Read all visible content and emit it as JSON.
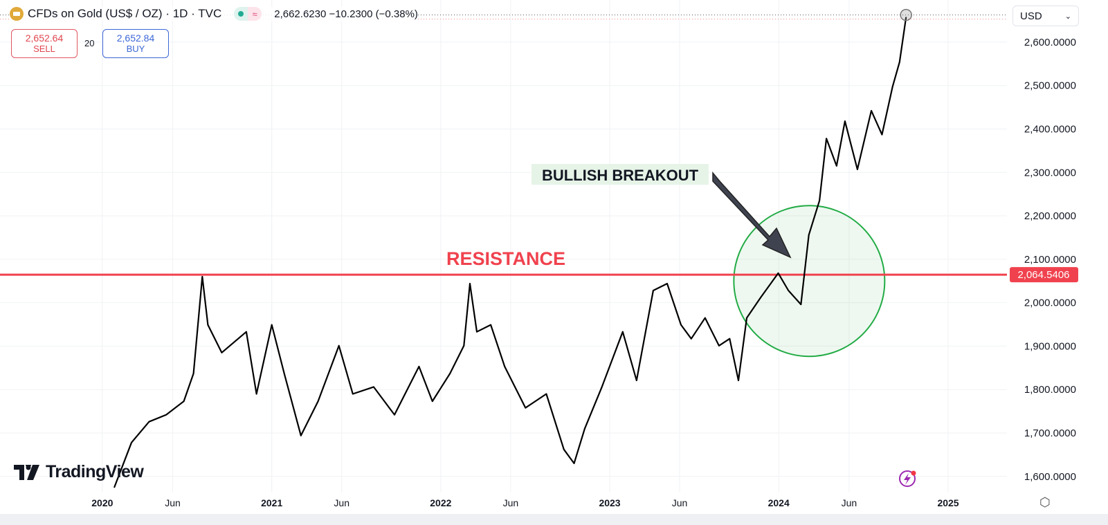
{
  "header": {
    "symbol": "CFDs on Gold (US$ / OZ) · 1D · TVC",
    "quote": "2,662.6230 −10.2300 (−0.38%)",
    "icon": "gold-bars-icon",
    "status_icons": [
      "market-open-dot-icon",
      "wave-icon"
    ]
  },
  "trade": {
    "sell_price": "2,652.64",
    "sell_label": "SELL",
    "spread": "20",
    "buy_price": "2,652.84",
    "buy_label": "BUY"
  },
  "currency": {
    "selected": "USD"
  },
  "brand": {
    "logo_text": "TradingView"
  },
  "colors": {
    "price_line": "#000000",
    "resistance": "#f0424e",
    "circle": "#22ab45",
    "sell": "#e0454f",
    "buy": "#3c67d6"
  },
  "chart_data": {
    "type": "line",
    "title": "",
    "ylabel": "",
    "xlabel": "",
    "xlim": [
      "2019-05-25",
      "2025-05-08"
    ],
    "ylim": [
      1563,
      2697
    ],
    "grid": true,
    "y_ticks": [
      "2,600.0000",
      "2,500.0000",
      "2,400.0000",
      "2,300.0000",
      "2,200.0000",
      "2,100.0000",
      "2,000.0000",
      "1,900.0000",
      "1,800.0000",
      "1,700.0000",
      "1,600.0000"
    ],
    "y_tick_values": [
      2600,
      2500,
      2400,
      2300,
      2200,
      2100,
      2000,
      1900,
      1800,
      1700,
      1600
    ],
    "x_ticks": [
      {
        "label": "2020",
        "date": "2020-01-01",
        "bold": true
      },
      {
        "label": "Jun",
        "date": "2020-06-01"
      },
      {
        "label": "2021",
        "date": "2021-01-01",
        "bold": true
      },
      {
        "label": "Jun",
        "date": "2021-06-01"
      },
      {
        "label": "2022",
        "date": "2022-01-01",
        "bold": true
      },
      {
        "label": "Jun",
        "date": "2022-06-01"
      },
      {
        "label": "2023",
        "date": "2023-01-01",
        "bold": true
      },
      {
        "label": "Jun",
        "date": "2023-06-01"
      },
      {
        "label": "2024",
        "date": "2024-01-01",
        "bold": true
      },
      {
        "label": "Jun",
        "date": "2024-06-01"
      },
      {
        "label": "2025",
        "date": "2025-01-01",
        "bold": true
      }
    ],
    "series": [
      {
        "x": [
          "2020-01-27",
          "2020-03-04",
          "2020-04-11",
          "2020-05-18",
          "2020-06-25",
          "2020-07-16",
          "2020-08-04",
          "2020-08-16",
          "2020-09-15",
          "2020-11-07",
          "2020-11-29",
          "2021-01-01",
          "2021-01-28",
          "2021-03-05",
          "2021-04-11",
          "2021-05-26",
          "2021-06-25",
          "2021-08-09",
          "2021-09-23",
          "2021-11-15",
          "2021-12-14",
          "2022-01-21",
          "2022-02-20",
          "2022-03-05",
          "2022-03-20",
          "2022-04-19",
          "2022-05-19",
          "2022-07-03",
          "2022-08-17",
          "2022-09-24",
          "2022-10-16",
          "2022-11-08",
          "2022-12-15",
          "2023-01-29",
          "2023-02-28",
          "2023-04-05",
          "2023-05-05",
          "2023-06-04",
          "2023-06-26",
          "2023-07-26",
          "2023-08-25",
          "2023-09-17",
          "2023-10-06",
          "2023-10-24",
          "2023-11-23",
          "2023-12-31",
          "2024-01-22",
          "2024-02-18",
          "2024-03-06",
          "2024-03-29",
          "2024-04-13",
          "2024-05-05",
          "2024-05-23",
          "2024-06-19",
          "2024-07-19",
          "2024-08-11",
          "2024-09-03",
          "2024-09-18",
          "2024-10-02"
        ],
        "values": [
          1575,
          1678,
          1726,
          1742,
          1773,
          1837,
          2060,
          1949,
          1885,
          1933,
          1790,
          1949,
          1837,
          1694,
          1773,
          1901,
          1790,
          1806,
          1742,
          1853,
          1773,
          1837,
          1901,
          2044,
          1933,
          1949,
          1853,
          1758,
          1790,
          1662,
          1630,
          1710,
          1806,
          1933,
          1821,
          2028,
          2044,
          1949,
          1917,
          1965,
          1901,
          1917,
          1821,
          1965,
          2012,
          2068,
          2028,
          1996,
          2156,
          2235,
          2378,
          2315,
          2418,
          2307,
          2442,
          2387,
          2498,
          2554,
          2657
        ]
      }
    ],
    "current_price": 2662.623,
    "resistance": {
      "label": "RESISTANCE",
      "value": 2064.5406,
      "value_label": "2,064.5406"
    },
    "annotation": {
      "label": "BULLISH BREAKOUT",
      "circle_center_date": "2024-03-07",
      "circle_center_price": 2050
    }
  }
}
